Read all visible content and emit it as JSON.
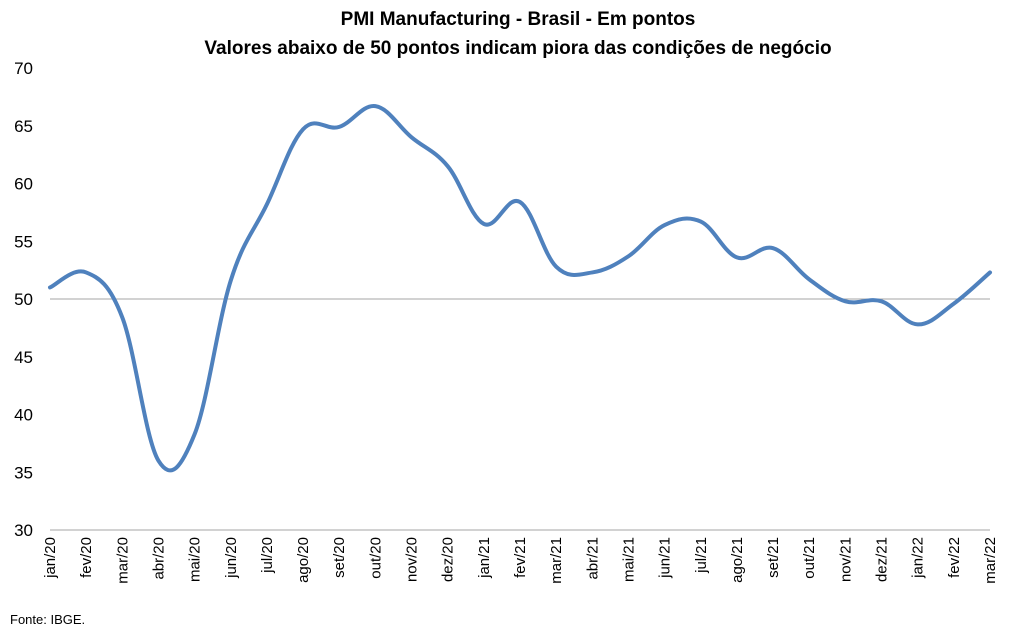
{
  "chart_data": {
    "type": "line",
    "title": "PMI Manufacturing - Brasil - Em pontos",
    "subtitle": "Valores abaixo de 50 pontos indicam piora das condições de negócio",
    "xlabel": "",
    "ylabel": "",
    "ylim": [
      30,
      70
    ],
    "yticks": [
      30,
      35,
      40,
      45,
      50,
      55,
      60,
      65,
      70
    ],
    "reference_line": 50,
    "categories": [
      "jan/20",
      "fev/20",
      "mar/20",
      "abr/20",
      "mai/20",
      "jun/20",
      "jul/20",
      "ago/20",
      "set/20",
      "out/20",
      "nov/20",
      "dez/20",
      "jan/21",
      "fev/21",
      "mar/21",
      "abr/21",
      "mai/21",
      "jun/21",
      "jul/21",
      "ago/21",
      "set/21",
      "out/21",
      "nov/21",
      "dez/21",
      "jan/22",
      "fev/22",
      "mar/22"
    ],
    "series": [
      {
        "color": "#4f81bd",
        "values": [
          51.0,
          52.3,
          48.4,
          36.0,
          38.3,
          51.6,
          58.2,
          64.7,
          64.9,
          66.7,
          64.0,
          61.5,
          56.5,
          58.4,
          52.8,
          52.3,
          53.7,
          56.4,
          56.7,
          53.6,
          54.4,
          51.7,
          49.8,
          49.8,
          47.8,
          49.6,
          52.3
        ]
      }
    ],
    "grid": false,
    "legend": "none",
    "source": "Fonte: IBGE."
  }
}
